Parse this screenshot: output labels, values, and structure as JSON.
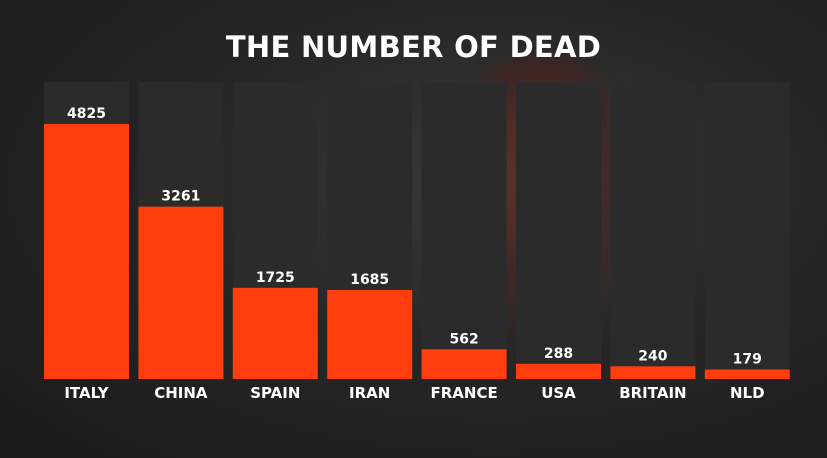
{
  "chart_data": {
    "type": "bar",
    "title": "THE NUMBER OF DEAD",
    "categories": [
      "ITALY",
      "CHINA",
      "SPAIN",
      "IRAN",
      "FRANCE",
      "USA",
      "BRITAIN",
      "NLD"
    ],
    "values": [
      4825,
      3261,
      1725,
      1685,
      562,
      288,
      240,
      179
    ],
    "xlabel": "",
    "ylabel": "",
    "grid": false,
    "legend": "none",
    "colors": {
      "bar": "#ff3d0d",
      "track": "#2b2b2b",
      "text": "#ffffff"
    }
  }
}
